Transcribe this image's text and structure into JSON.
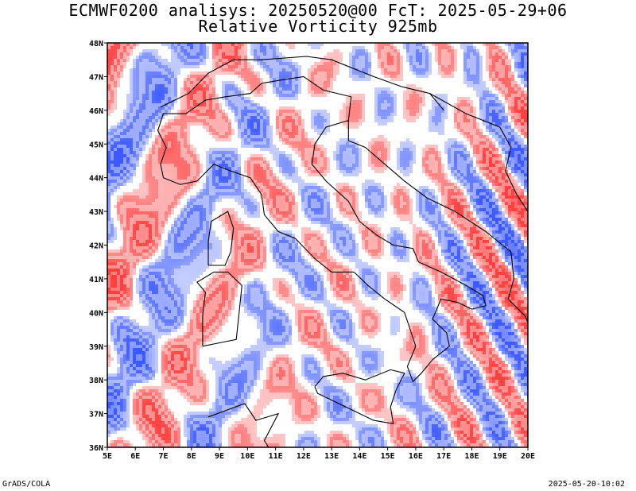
{
  "title_line1": "ECMWF0200 analisys: 20250520@00 FcT: 2025-05-29+06",
  "title_line2": "Relative Vorticity 925mb",
  "footer_left": "GrADS/COLA",
  "footer_right": "2025-05-20-10:02",
  "map": {
    "lon_range": [
      5,
      20
    ],
    "lat_range": [
      36,
      48
    ],
    "lon_ticks": [
      "5E",
      "6E",
      "7E",
      "8E",
      "9E",
      "10E",
      "11E",
      "12E",
      "13E",
      "14E",
      "15E",
      "16E",
      "17E",
      "18E",
      "19E",
      "20E"
    ],
    "lat_ticks": [
      "36N",
      "37N",
      "38N",
      "39N",
      "40N",
      "41N",
      "42N",
      "43N",
      "44N",
      "45N",
      "46N",
      "47N",
      "48N"
    ],
    "colors": {
      "positive": "#ff4040",
      "negative": "#3c5aff",
      "coastline": "#000000",
      "background": "#ffffff"
    }
  }
}
